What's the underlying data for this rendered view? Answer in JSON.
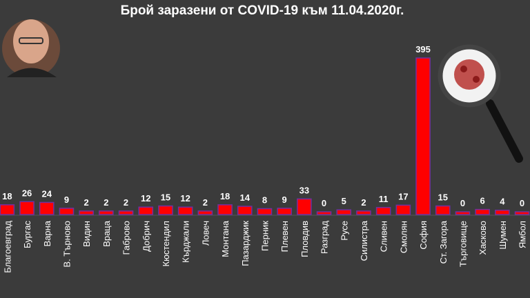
{
  "chart_data": {
    "type": "bar",
    "title": "Брой заразени от COVID-19 към 11.04.2020г.",
    "categories": [
      "Благоевград",
      "Бургас",
      "Варна",
      "В. Търново",
      "Видин",
      "Враца",
      "Габрово",
      "Добрич",
      "Кюстендил",
      "Кърджали",
      "Ловеч",
      "Монтана",
      "Пазарджик",
      "Перник",
      "Плевен",
      "Пловдив",
      "Разград",
      "Русе",
      "Силистра",
      "Сливен",
      "Смолян",
      "София",
      "Ст. Загора",
      "Търговище",
      "Хасково",
      "Шумен",
      "Ямбол"
    ],
    "values": [
      18,
      26,
      24,
      9,
      2,
      2,
      2,
      12,
      15,
      12,
      2,
      18,
      14,
      8,
      9,
      33,
      0,
      5,
      2,
      11,
      17,
      395,
      15,
      0,
      6,
      4,
      0
    ],
    "color": "#ff0000",
    "ylim": [
      0,
      450
    ]
  }
}
